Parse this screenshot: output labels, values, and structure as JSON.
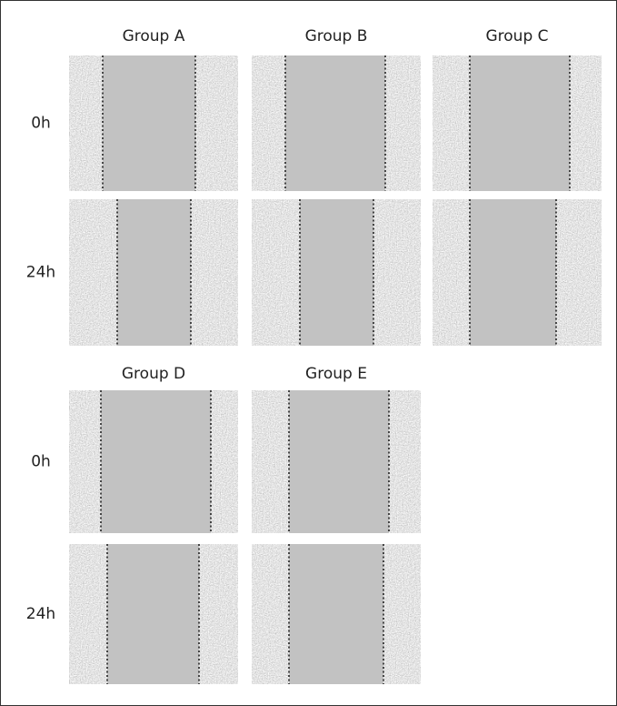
{
  "sections": [
    {
      "groups": [
        "Group A",
        "Group B",
        "Group C"
      ],
      "rows": [
        "0h",
        "24h"
      ]
    },
    {
      "groups": [
        "Group D",
        "Group E"
      ],
      "rows": [
        "0h",
        "24h"
      ]
    }
  ]
}
